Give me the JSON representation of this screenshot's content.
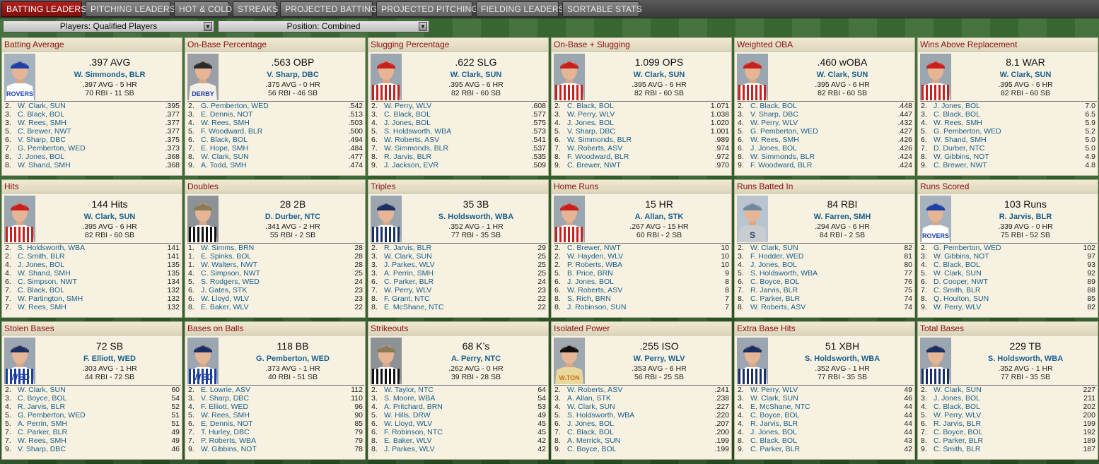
{
  "tabs": [
    {
      "label": "BATTING LEADERS",
      "active": true
    },
    {
      "label": "PITCHING LEADERS",
      "active": false
    },
    {
      "label": "HOT & COLD",
      "active": false
    },
    {
      "label": "STREAKS",
      "active": false
    },
    {
      "label": "PROJECTED BATTING",
      "active": false
    },
    {
      "label": "PROJECTED PITCHING",
      "active": false
    },
    {
      "label": "FIELDING LEADERS",
      "active": false
    },
    {
      "label": "SORTABLE STATS",
      "active": false
    }
  ],
  "filters": {
    "players": "Players: Qualified Players",
    "position": "Position: Combined"
  },
  "colors": {
    "accent": "#8a0f0f",
    "active_tab": "#a3191a",
    "link": "#1a5f8c"
  },
  "panels": [
    {
      "title": "Batting Average",
      "value": ".397 AVG",
      "leader": "W. Simmonds, BLR",
      "line1": ".397 AVG - 5 HR",
      "line2": "70 RBI - 11 SB",
      "jersey": "rovers",
      "rows": [
        [
          "2.",
          "W. Clark, SUN",
          ".395"
        ],
        [
          "3.",
          "C. Black, BOL",
          ".377"
        ],
        [
          "3.",
          "W. Rees, SMH",
          ".377"
        ],
        [
          "5.",
          "C. Brewer, NWT",
          ".377"
        ],
        [
          "6.",
          "V. Sharp, DBC",
          ".375"
        ],
        [
          "7.",
          "G. Pemberton, WED",
          ".373"
        ],
        [
          "8.",
          "J. Jones, BOL",
          ".368"
        ],
        [
          "8.",
          "W. Shand, SMH",
          ".368"
        ]
      ]
    },
    {
      "title": "On-Base Percentage",
      "value": ".563 OBP",
      "leader": "V. Sharp, DBC",
      "line1": ".375 AVG - 0 HR",
      "line2": "56 RBI - 46 SB",
      "jersey": "derby",
      "rows": [
        [
          "2.",
          "G. Pemberton, WED",
          ".542"
        ],
        [
          "3.",
          "E. Dennis, NOT",
          ".513"
        ],
        [
          "4.",
          "W. Rees, SMH",
          ".503"
        ],
        [
          "5.",
          "F. Woodward, BLR",
          ".500"
        ],
        [
          "6.",
          "C. Black, BOL",
          ".494"
        ],
        [
          "7.",
          "E. Hope, SMH",
          ".484"
        ],
        [
          "8.",
          "W. Clark, SUN",
          ".477"
        ],
        [
          "9.",
          "A. Todd, SMH",
          ".474"
        ]
      ]
    },
    {
      "title": "Slugging Percentage",
      "value": ".622 SLG",
      "leader": "W. Clark, SUN",
      "line1": ".395 AVG - 6 HR",
      "line2": "82 RBI - 60 SB",
      "jersey": "red",
      "rows": [
        [
          "2.",
          "W. Perry, WLV",
          ".608"
        ],
        [
          "3.",
          "C. Black, BOL",
          ".577"
        ],
        [
          "4.",
          "J. Jones, BOL",
          ".575"
        ],
        [
          "5.",
          "S. Holdsworth, WBA",
          ".573"
        ],
        [
          "6.",
          "W. Roberts, ASV",
          ".541"
        ],
        [
          "7.",
          "W. Simmonds, BLR",
          ".537"
        ],
        [
          "8.",
          "R. Jarvis, BLR",
          ".535"
        ],
        [
          "9.",
          "J. Jackson, EVR",
          ".509"
        ]
      ]
    },
    {
      "title": "On-Base + Slugging",
      "value": "1.099 OPS",
      "leader": "W. Clark, SUN",
      "line1": ".395 AVG - 6 HR",
      "line2": "82 RBI - 60 SB",
      "jersey": "red",
      "rows": [
        [
          "2.",
          "C. Black, BOL",
          "1.071"
        ],
        [
          "3.",
          "W. Perry, WLV",
          "1.038"
        ],
        [
          "4.",
          "J. Jones, BOL",
          "1.020"
        ],
        [
          "5.",
          "V. Sharp, DBC",
          "1.001"
        ],
        [
          "6.",
          "W. Simmonds, BLR",
          ".989"
        ],
        [
          "7.",
          "W. Roberts, ASV",
          ".974"
        ],
        [
          "8.",
          "F. Woodward, BLR",
          ".972"
        ],
        [
          "9.",
          "C. Brewer, NWT",
          ".970"
        ]
      ]
    },
    {
      "title": "Weighted OBA",
      "value": ".460 wOBA",
      "leader": "W. Clark, SUN",
      "line1": ".395 AVG - 6 HR",
      "line2": "82 RBI - 60 SB",
      "jersey": "red",
      "rows": [
        [
          "2.",
          "C. Black, BOL",
          ".448"
        ],
        [
          "3.",
          "V. Sharp, DBC",
          ".447"
        ],
        [
          "4.",
          "W. Perry, WLV",
          ".432"
        ],
        [
          "5.",
          "G. Pemberton, WED",
          ".427"
        ],
        [
          "6.",
          "W. Rees, SMH",
          ".426"
        ],
        [
          "6.",
          "J. Jones, BOL",
          ".426"
        ],
        [
          "8.",
          "W. Simmonds, BLR",
          ".424"
        ],
        [
          "9.",
          "F. Woodward, BLR",
          ".424"
        ]
      ]
    },
    {
      "title": "Wins Above Replacement",
      "value": "8.1 WAR",
      "leader": "W. Clark, SUN",
      "line1": ".395 AVG - 6 HR",
      "line2": "82 RBI - 60 SB",
      "jersey": "red",
      "rows": [
        [
          "2.",
          "J. Jones, BOL",
          "7.0"
        ],
        [
          "3.",
          "C. Black, BOL",
          "6.5"
        ],
        [
          "4.",
          "W. Rees, SMH",
          "5.9"
        ],
        [
          "5.",
          "G. Pemberton, WED",
          "5.2"
        ],
        [
          "6.",
          "W. Shand, SMH",
          "5.0"
        ],
        [
          "7.",
          "D. Durber, NTC",
          "5.0"
        ],
        [
          "8.",
          "W. Gibbins, NOT",
          "4.9"
        ],
        [
          "9.",
          "C. Brewer, NWT",
          "4.8"
        ]
      ]
    },
    {
      "title": "Hits",
      "value": "144 Hits",
      "leader": "W. Clark, SUN",
      "line1": ".395 AVG - 6 HR",
      "line2": "82 RBI - 60 SB",
      "jersey": "red",
      "rows": [
        [
          "2.",
          "S. Holdsworth, WBA",
          "141"
        ],
        [
          "2.",
          "C. Smith, BLR",
          "141"
        ],
        [
          "4.",
          "J. Jones, BOL",
          "135"
        ],
        [
          "4.",
          "W. Shand, SMH",
          "135"
        ],
        [
          "6.",
          "C. Simpson, NWT",
          "134"
        ],
        [
          "7.",
          "C. Black, BOL",
          "132"
        ],
        [
          "7.",
          "W. Partington, SMH",
          "132"
        ],
        [
          "7.",
          "W. Rees, SMH",
          "132"
        ]
      ]
    },
    {
      "title": "Doubles",
      "value": "28 2B",
      "leader": "D. Durber, NTC",
      "line1": ".341 AVG - 2 HR",
      "line2": "55 RBI - 2 SB",
      "jersey": "stripe",
      "rows": [
        [
          "1.",
          "W. Simms, BRN",
          "28"
        ],
        [
          "1.",
          "E. Spinks, BOL",
          "28"
        ],
        [
          "1.",
          "W. Walters, NWT",
          "28"
        ],
        [
          "4.",
          "C. Simpson, NWT",
          "25"
        ],
        [
          "5.",
          "S. Rodgers, WED",
          "24"
        ],
        [
          "6.",
          "J. Gates, STK",
          "23"
        ],
        [
          "6.",
          "W. Lloyd, WLV",
          "23"
        ],
        [
          "8.",
          "E. Baker, WLV",
          "22"
        ]
      ]
    },
    {
      "title": "Triples",
      "value": "35 3B",
      "leader": "S. Holdsworth, WBA",
      "line1": ".352 AVG - 1 HR",
      "line2": "77 RBI - 35 SB",
      "jersey": "blue",
      "rows": [
        [
          "2.",
          "R. Jarvis, BLR",
          "29"
        ],
        [
          "3.",
          "W. Clark, SUN",
          "25"
        ],
        [
          "3.",
          "J. Parkes, WLV",
          "25"
        ],
        [
          "3.",
          "A. Perrin, SMH",
          "25"
        ],
        [
          "6.",
          "C. Parker, BLR",
          "24"
        ],
        [
          "7.",
          "W. Perry, WLV",
          "23"
        ],
        [
          "8.",
          "F. Grant, NTC",
          "22"
        ],
        [
          "8.",
          "E. McShane, NTC",
          "22"
        ]
      ]
    },
    {
      "title": "Home Runs",
      "value": "15 HR",
      "leader": "A. Allan, STK",
      "line1": ".267 AVG - 15 HR",
      "line2": "60 RBI - 2 SB",
      "jersey": "red",
      "rows": [
        [
          "2.",
          "C. Brewer, NWT",
          "10"
        ],
        [
          "2.",
          "W. Hayden, WLV",
          "10"
        ],
        [
          "2.",
          "P. Roberts, WBA",
          "10"
        ],
        [
          "5.",
          "B. Price, BRN",
          "9"
        ],
        [
          "6.",
          "J. Jones, BOL",
          "8"
        ],
        [
          "6.",
          "W. Roberts, ASV",
          "8"
        ],
        [
          "8.",
          "S. Rich, BRN",
          "7"
        ],
        [
          "8.",
          "J. Robinson, SUN",
          "7"
        ]
      ]
    },
    {
      "title": "Runs Batted In",
      "value": "84 RBI",
      "leader": "W. Farren, SMH",
      "line1": ".294 AVG - 6 HR",
      "line2": "84 RBI - 2 SB",
      "jersey": "gray",
      "rows": [
        [
          "2.",
          "W. Clark, SUN",
          "82"
        ],
        [
          "3.",
          "F. Hodder, WED",
          "81"
        ],
        [
          "4.",
          "J. Jones, BOL",
          "80"
        ],
        [
          "5.",
          "S. Holdsworth, WBA",
          "77"
        ],
        [
          "6.",
          "C. Boyce, BOL",
          "76"
        ],
        [
          "7.",
          "R. Jarvis, BLR",
          "75"
        ],
        [
          "8.",
          "C. Parker, BLR",
          "74"
        ],
        [
          "8.",
          "W. Roberts, ASV",
          "74"
        ]
      ]
    },
    {
      "title": "Runs Scored",
      "value": "103 Runs",
      "leader": "R. Jarvis, BLR",
      "line1": ".339 AVG - 0 HR",
      "line2": "75 RBI - 52 SB",
      "jersey": "rovers",
      "rows": [
        [
          "2.",
          "G. Pemberton, WED",
          "102"
        ],
        [
          "3.",
          "W. Gibbins, NOT",
          "97"
        ],
        [
          "4.",
          "C. Black, BOL",
          "93"
        ],
        [
          "5.",
          "W. Clark, SUN",
          "92"
        ],
        [
          "6.",
          "D. Cooper, NWT",
          "89"
        ],
        [
          "7.",
          "C. Smith, BLR",
          "88"
        ],
        [
          "8.",
          "Q. Houlton, SUN",
          "85"
        ],
        [
          "9.",
          "W. Perry, WLV",
          "82"
        ]
      ]
    },
    {
      "title": "Stolen Bases",
      "value": "72 SB",
      "leader": "F. Elliott, WED",
      "line1": ".303 AVG - 1 HR",
      "line2": "44 RBI - 72 SB",
      "jersey": "wed",
      "rows": [
        [
          "2.",
          "W. Clark, SUN",
          "60"
        ],
        [
          "3.",
          "C. Boyce, BOL",
          "54"
        ],
        [
          "4.",
          "R. Jarvis, BLR",
          "52"
        ],
        [
          "5.",
          "G. Pemberton, WED",
          "51"
        ],
        [
          "5.",
          "A. Perrin, SMH",
          "51"
        ],
        [
          "7.",
          "C. Parker, BLR",
          "49"
        ],
        [
          "7.",
          "W. Rees, SMH",
          "49"
        ],
        [
          "9.",
          "V. Sharp, DBC",
          "46"
        ]
      ]
    },
    {
      "title": "Bases on Balls",
      "value": "118 BB",
      "leader": "G. Pemberton, WED",
      "line1": ".373 AVG - 1 HR",
      "line2": "40 RBI - 51 SB",
      "jersey": "wed",
      "rows": [
        [
          "2.",
          "E. Lowrie, ASV",
          "112"
        ],
        [
          "3.",
          "V. Sharp, DBC",
          "110"
        ],
        [
          "4.",
          "F. Elliott, WED",
          "96"
        ],
        [
          "5.",
          "W. Rees, SMH",
          "90"
        ],
        [
          "6.",
          "E. Dennis, NOT",
          "85"
        ],
        [
          "7.",
          "T. Hurley, DBC",
          "79"
        ],
        [
          "7.",
          "P. Roberts, WBA",
          "79"
        ],
        [
          "9.",
          "W. Gibbins, NOT",
          "78"
        ]
      ]
    },
    {
      "title": "Strikeouts",
      "value": "68 K’s",
      "leader": "A. Perry, NTC",
      "line1": ".262 AVG - 0 HR",
      "line2": "39 RBI - 28 SB",
      "jersey": "stripe",
      "rows": [
        [
          "2.",
          "W. Taylor, NTC",
          "64"
        ],
        [
          "3.",
          "S. Moore, WBA",
          "54"
        ],
        [
          "4.",
          "A. Pritchard, BRN",
          "53"
        ],
        [
          "5.",
          "W. Hills, DRW",
          "49"
        ],
        [
          "6.",
          "W. Lloyd, WLV",
          "45"
        ],
        [
          "6.",
          "F. Robinson, NTC",
          "45"
        ],
        [
          "8.",
          "E. Baker, WLV",
          "42"
        ],
        [
          "8.",
          "J. Parkes, WLV",
          "42"
        ]
      ]
    },
    {
      "title": "Isolated Power",
      "value": ".255 ISO",
      "leader": "W. Perry, WLV",
      "line1": ".353 AVG - 6 HR",
      "line2": "56 RBI - 25 SB",
      "jersey": "wlv",
      "rows": [
        [
          "2.",
          "W. Roberts, ASV",
          ".241"
        ],
        [
          "3.",
          "A. Allan, STK",
          ".238"
        ],
        [
          "4.",
          "W. Clark, SUN",
          ".227"
        ],
        [
          "5.",
          "S. Holdsworth, WBA",
          ".220"
        ],
        [
          "6.",
          "J. Jones, BOL",
          ".207"
        ],
        [
          "7.",
          "C. Black, BOL",
          ".200"
        ],
        [
          "8.",
          "A. Merrick, SUN",
          ".199"
        ],
        [
          "9.",
          "C. Boyce, BOL",
          ".199"
        ]
      ]
    },
    {
      "title": "Extra Base Hits",
      "value": "51 XBH",
      "leader": "S. Holdsworth, WBA",
      "line1": ".352 AVG - 1 HR",
      "line2": "77 RBI - 35 SB",
      "jersey": "blue",
      "rows": [
        [
          "2.",
          "W. Perry, WLV",
          "49"
        ],
        [
          "3.",
          "W. Clark, SUN",
          "46"
        ],
        [
          "4.",
          "E. McShane, NTC",
          "44"
        ],
        [
          "4.",
          "C. Boyce, BOL",
          "44"
        ],
        [
          "4.",
          "R. Jarvis, BLR",
          "44"
        ],
        [
          "4.",
          "J. Jones, BOL",
          "44"
        ],
        [
          "8.",
          "C. Black, BOL",
          "43"
        ],
        [
          "9.",
          "C. Parker, BLR",
          "42"
        ]
      ]
    },
    {
      "title": "Total Bases",
      "value": "229 TB",
      "leader": "S. Holdsworth, WBA",
      "line1": ".352 AVG - 1 HR",
      "line2": "77 RBI - 35 SB",
      "jersey": "blue",
      "rows": [
        [
          "2.",
          "W. Clark, SUN",
          "227"
        ],
        [
          "3.",
          "J. Jones, BOL",
          "211"
        ],
        [
          "4.",
          "C. Black, BOL",
          "202"
        ],
        [
          "5.",
          "W. Perry, WLV",
          "200"
        ],
        [
          "6.",
          "R. Jarvis, BLR",
          "199"
        ],
        [
          "7.",
          "C. Boyce, BOL",
          "192"
        ],
        [
          "8.",
          "C. Parker, BLR",
          "189"
        ],
        [
          "9.",
          "C. Smith, BLR",
          "187"
        ]
      ]
    }
  ]
}
